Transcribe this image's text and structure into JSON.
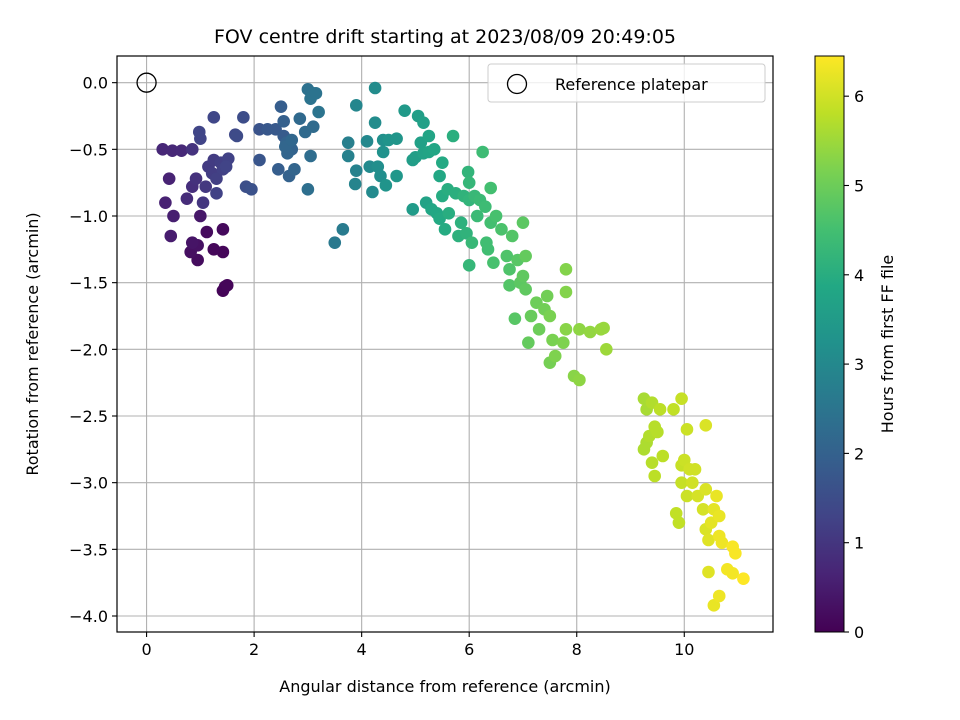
{
  "chart_data": {
    "type": "scatter",
    "title": "FOV centre drift starting at 2023/08/09 20:49:05",
    "xlabel": "Angular distance from reference (arcmin)",
    "ylabel": "Rotation from reference (arcmin)",
    "xlim": [
      -0.55,
      11.65
    ],
    "ylim": [
      -4.12,
      0.2
    ],
    "xticks": [
      0,
      2,
      4,
      6,
      8,
      10
    ],
    "xtick_labels": [
      "0",
      "2",
      "4",
      "6",
      "8",
      "10"
    ],
    "yticks": [
      0.0,
      -0.5,
      -1.0,
      -1.5,
      -2.0,
      -2.5,
      -3.0,
      -3.5,
      -4.0
    ],
    "ytick_labels": [
      "0.0",
      "−0.5",
      "−1.0",
      "−1.5",
      "−2.0",
      "−2.5",
      "−3.0",
      "−3.5",
      "−4.0"
    ],
    "grid": true,
    "legend": {
      "placement": "top-right",
      "entries": [
        "Reference platepar"
      ]
    },
    "reference_point": {
      "x": 0,
      "y": 0
    },
    "colorbar": {
      "label": "Hours from first FF file",
      "min": 0,
      "max": 6.45,
      "ticks": [
        0,
        1,
        2,
        3,
        4,
        5,
        6
      ],
      "tick_labels": [
        "0",
        "1",
        "2",
        "3",
        "4",
        "5",
        "6"
      ],
      "colormap": "viridis"
    },
    "points": [
      [
        1.42,
        -1.56,
        0.05
      ],
      [
        1.46,
        -1.53,
        0.07
      ],
      [
        1.5,
        -1.52,
        0.09
      ],
      [
        1.42,
        -1.27,
        0.1
      ],
      [
        1.25,
        -1.25,
        0.12
      ],
      [
        1.42,
        -1.1,
        0.15
      ],
      [
        1.12,
        -1.12,
        0.18
      ],
      [
        0.95,
        -1.33,
        0.2
      ],
      [
        0.82,
        -1.27,
        0.25
      ],
      [
        0.95,
        -1.22,
        0.3
      ],
      [
        0.85,
        -1.2,
        0.35
      ],
      [
        1.0,
        -1.0,
        0.4
      ],
      [
        0.45,
        -1.15,
        0.5
      ],
      [
        0.5,
        -1.0,
        0.55
      ],
      [
        0.35,
        -0.9,
        0.6
      ],
      [
        0.42,
        -0.72,
        0.62
      ],
      [
        0.3,
        -0.5,
        0.7
      ],
      [
        0.48,
        -0.51,
        0.72
      ],
      [
        0.65,
        -0.51,
        0.75
      ],
      [
        0.75,
        -0.87,
        0.8
      ],
      [
        0.85,
        -0.78,
        0.85
      ],
      [
        0.92,
        -0.72,
        0.9
      ],
      [
        0.85,
        -0.5,
        0.95
      ],
      [
        1.05,
        -0.9,
        1.0
      ],
      [
        1.1,
        -0.78,
        1.05
      ],
      [
        1.15,
        -0.63,
        1.1
      ],
      [
        1.25,
        -0.58,
        1.12
      ],
      [
        1.22,
        -0.68,
        1.15
      ],
      [
        1.38,
        -0.6,
        1.18
      ],
      [
        1.3,
        -0.72,
        1.2
      ],
      [
        1.42,
        -0.65,
        1.22
      ],
      [
        1.52,
        -0.57,
        1.25
      ],
      [
        1.3,
        -0.83,
        1.25
      ],
      [
        1.48,
        -0.63,
        1.28
      ],
      [
        1.0,
        -0.42,
        1.3
      ],
      [
        0.98,
        -0.37,
        1.32
      ],
      [
        1.25,
        -0.26,
        1.35
      ],
      [
        1.65,
        -0.39,
        1.4
      ],
      [
        1.68,
        -0.4,
        1.45
      ],
      [
        1.8,
        -0.26,
        1.5
      ],
      [
        1.85,
        -0.78,
        1.55
      ],
      [
        1.95,
        -0.8,
        1.6
      ],
      [
        2.1,
        -0.35,
        1.65
      ],
      [
        2.1,
        -0.58,
        1.7
      ],
      [
        2.25,
        -0.35,
        1.75
      ],
      [
        2.4,
        -0.35,
        1.8
      ],
      [
        2.55,
        -0.4,
        1.85
      ],
      [
        2.45,
        -0.65,
        1.9
      ],
      [
        2.5,
        -0.18,
        1.9
      ],
      [
        2.55,
        -0.29,
        1.95
      ],
      [
        2.6,
        -0.45,
        2.0
      ],
      [
        2.65,
        -0.7,
        2.02
      ],
      [
        2.7,
        -0.5,
        2.05
      ],
      [
        2.75,
        -0.65,
        2.08
      ],
      [
        2.62,
        -0.53,
        2.1
      ],
      [
        2.58,
        -0.48,
        2.12
      ],
      [
        2.7,
        -0.43,
        2.15
      ],
      [
        2.85,
        -0.27,
        2.2
      ],
      [
        2.95,
        -0.37,
        2.22
      ],
      [
        3.1,
        -0.33,
        2.25
      ],
      [
        3.05,
        -0.55,
        2.3
      ],
      [
        3.0,
        -0.8,
        2.35
      ],
      [
        3.0,
        -0.05,
        2.4
      ],
      [
        3.1,
        -0.08,
        2.42
      ],
      [
        3.05,
        -0.12,
        2.44
      ],
      [
        3.15,
        -0.08,
        2.46
      ],
      [
        3.2,
        -0.22,
        2.48
      ],
      [
        3.5,
        -1.2,
        2.6
      ],
      [
        3.65,
        -1.1,
        2.65
      ],
      [
        3.75,
        -0.45,
        2.75
      ],
      [
        3.75,
        -0.55,
        2.8
      ],
      [
        3.9,
        -0.66,
        2.85
      ],
      [
        3.88,
        -0.76,
        2.9
      ],
      [
        3.9,
        -0.17,
        2.95
      ],
      [
        4.1,
        -0.44,
        3.0
      ],
      [
        4.15,
        -0.63,
        3.05
      ],
      [
        4.2,
        -0.82,
        3.05
      ],
      [
        4.25,
        -0.04,
        3.1
      ],
      [
        4.25,
        -0.3,
        3.1
      ],
      [
        4.3,
        -0.63,
        3.15
      ],
      [
        4.35,
        -0.7,
        3.15
      ],
      [
        4.4,
        -0.43,
        3.2
      ],
      [
        4.4,
        -0.52,
        3.25
      ],
      [
        4.45,
        -0.77,
        3.3
      ],
      [
        4.5,
        -0.43,
        3.3
      ],
      [
        4.65,
        -0.42,
        3.35
      ],
      [
        4.65,
        -0.7,
        3.4
      ],
      [
        4.8,
        -0.21,
        3.45
      ],
      [
        4.95,
        -0.95,
        3.5
      ],
      [
        4.95,
        -0.58,
        3.55
      ],
      [
        5.0,
        -0.56,
        3.6
      ],
      [
        5.05,
        -0.25,
        3.6
      ],
      [
        5.1,
        -0.45,
        3.65
      ],
      [
        5.15,
        -0.3,
        3.65
      ],
      [
        5.15,
        -0.53,
        3.7
      ],
      [
        5.2,
        -0.9,
        3.7
      ],
      [
        5.25,
        -0.4,
        3.75
      ],
      [
        5.25,
        -0.52,
        3.75
      ],
      [
        5.3,
        -0.95,
        3.8
      ],
      [
        5.35,
        -0.5,
        3.8
      ],
      [
        5.4,
        -0.98,
        3.85
      ],
      [
        5.45,
        -0.7,
        3.85
      ],
      [
        5.45,
        -1.02,
        3.9
      ],
      [
        5.5,
        -0.6,
        3.9
      ],
      [
        5.5,
        -0.85,
        3.95
      ],
      [
        5.55,
        -1.1,
        3.95
      ],
      [
        5.6,
        -0.8,
        4.0
      ],
      [
        5.62,
        -0.98,
        4.0
      ],
      [
        5.7,
        -0.4,
        4.05
      ],
      [
        5.75,
        -0.83,
        4.05
      ],
      [
        5.8,
        -1.15,
        4.1
      ],
      [
        5.85,
        -1.05,
        4.1
      ],
      [
        5.9,
        -0.85,
        4.15
      ],
      [
        5.95,
        -1.13,
        4.15
      ],
      [
        6.0,
        -0.88,
        4.2
      ],
      [
        5.98,
        -0.67,
        4.2
      ],
      [
        6.0,
        -0.75,
        4.25
      ],
      [
        6.0,
        -1.37,
        4.25
      ],
      [
        6.1,
        -0.85,
        4.3
      ],
      [
        6.05,
        -1.2,
        4.3
      ],
      [
        6.15,
        -1.0,
        4.35
      ],
      [
        6.2,
        -0.88,
        4.35
      ],
      [
        6.25,
        -0.52,
        4.4
      ],
      [
        6.3,
        -0.93,
        4.4
      ],
      [
        6.32,
        -1.2,
        4.45
      ],
      [
        6.35,
        -1.25,
        4.45
      ],
      [
        6.4,
        -1.05,
        4.5
      ],
      [
        6.4,
        -0.79,
        4.5
      ],
      [
        6.45,
        -1.35,
        4.55
      ],
      [
        6.5,
        -1.0,
        4.55
      ],
      [
        6.6,
        -1.1,
        4.6
      ],
      [
        6.7,
        -1.3,
        4.65
      ],
      [
        6.75,
        -1.4,
        4.65
      ],
      [
        6.8,
        -1.15,
        4.7
      ],
      [
        6.75,
        -1.52,
        4.7
      ],
      [
        6.85,
        -1.77,
        4.75
      ],
      [
        6.9,
        -1.33,
        4.75
      ],
      [
        6.95,
        -1.5,
        4.8
      ],
      [
        7.0,
        -1.05,
        4.8
      ],
      [
        7.0,
        -1.45,
        4.85
      ],
      [
        7.05,
        -1.55,
        4.85
      ],
      [
        7.05,
        -1.3,
        4.9
      ],
      [
        7.1,
        -1.95,
        4.9
      ],
      [
        7.15,
        -1.75,
        4.95
      ],
      [
        7.25,
        -1.65,
        5.0
      ],
      [
        7.3,
        -1.85,
        5.0
      ],
      [
        7.4,
        -1.7,
        5.05
      ],
      [
        7.45,
        -1.6,
        5.05
      ],
      [
        7.5,
        -2.1,
        5.1
      ],
      [
        7.55,
        -1.93,
        5.15
      ],
      [
        7.5,
        -1.75,
        5.15
      ],
      [
        7.6,
        -2.05,
        5.2
      ],
      [
        7.75,
        -1.95,
        5.2
      ],
      [
        7.8,
        -1.4,
        5.25
      ],
      [
        7.8,
        -1.57,
        5.25
      ],
      [
        7.8,
        -1.85,
        5.3
      ],
      [
        7.95,
        -2.2,
        5.3
      ],
      [
        8.05,
        -2.23,
        5.35
      ],
      [
        8.05,
        -1.85,
        5.35
      ],
      [
        8.25,
        -1.87,
        5.4
      ],
      [
        8.45,
        -1.85,
        5.45
      ],
      [
        8.5,
        -1.84,
        5.45
      ],
      [
        8.55,
        -2.0,
        5.5
      ],
      [
        9.25,
        -2.37,
        5.6
      ],
      [
        9.3,
        -2.45,
        5.6
      ],
      [
        9.3,
        -2.7,
        5.65
      ],
      [
        9.25,
        -2.75,
        5.65
      ],
      [
        9.35,
        -2.65,
        5.7
      ],
      [
        9.4,
        -2.4,
        5.7
      ],
      [
        9.4,
        -2.85,
        5.75
      ],
      [
        9.45,
        -2.58,
        5.75
      ],
      [
        9.5,
        -2.62,
        5.75
      ],
      [
        9.45,
        -2.95,
        5.8
      ],
      [
        9.55,
        -2.45,
        5.8
      ],
      [
        9.6,
        -2.8,
        5.8
      ],
      [
        9.8,
        -2.45,
        5.85
      ],
      [
        9.85,
        -3.23,
        5.85
      ],
      [
        9.9,
        -3.3,
        5.85
      ],
      [
        9.95,
        -2.37,
        5.9
      ],
      [
        9.95,
        -2.87,
        5.9
      ],
      [
        9.95,
        -3.0,
        5.9
      ],
      [
        10.0,
        -2.83,
        5.95
      ],
      [
        10.05,
        -2.6,
        5.95
      ],
      [
        10.05,
        -3.1,
        5.95
      ],
      [
        10.1,
        -2.9,
        6.0
      ],
      [
        10.15,
        -3.0,
        6.0
      ],
      [
        10.2,
        -2.9,
        6.0
      ],
      [
        10.25,
        -3.1,
        6.05
      ],
      [
        10.35,
        -3.2,
        6.05
      ],
      [
        10.4,
        -2.57,
        6.1
      ],
      [
        10.4,
        -3.35,
        6.1
      ],
      [
        10.4,
        -3.05,
        6.1
      ],
      [
        10.45,
        -3.43,
        6.15
      ],
      [
        10.45,
        -3.67,
        6.15
      ],
      [
        10.5,
        -3.3,
        6.2
      ],
      [
        10.55,
        -3.2,
        6.2
      ],
      [
        10.55,
        -3.92,
        6.25
      ],
      [
        10.6,
        -3.1,
        6.25
      ],
      [
        10.65,
        -3.25,
        6.25
      ],
      [
        10.65,
        -3.4,
        6.3
      ],
      [
        10.65,
        -3.85,
        6.3
      ],
      [
        10.7,
        -3.45,
        6.3
      ],
      [
        10.8,
        -3.65,
        6.35
      ],
      [
        10.9,
        -3.68,
        6.35
      ],
      [
        10.9,
        -3.48,
        6.4
      ],
      [
        10.95,
        -3.53,
        6.4
      ],
      [
        11.1,
        -3.72,
        6.45
      ]
    ]
  }
}
